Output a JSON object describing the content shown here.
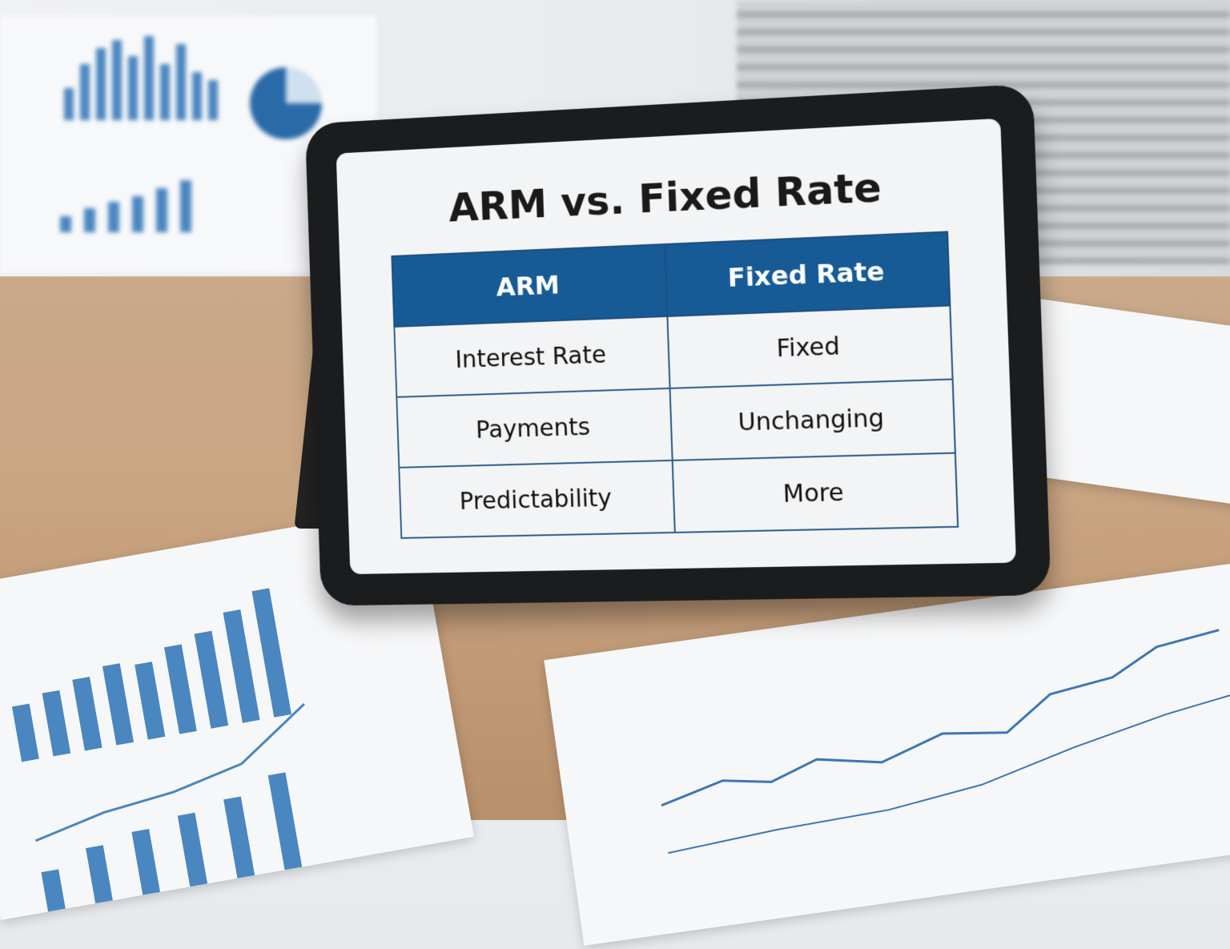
{
  "tablet": {
    "title": "ARM vs. Fixed Rate",
    "table": {
      "headers": [
        "ARM",
        "Fixed Rate"
      ],
      "rows": [
        [
          "Interest Rate",
          "Fixed"
        ],
        [
          "Payments",
          "Unchanging"
        ],
        [
          "Predictability",
          "More"
        ]
      ]
    }
  },
  "colors": {
    "header": "#165b96",
    "bezel": "#1b1c1e",
    "desk": "#caa582"
  }
}
